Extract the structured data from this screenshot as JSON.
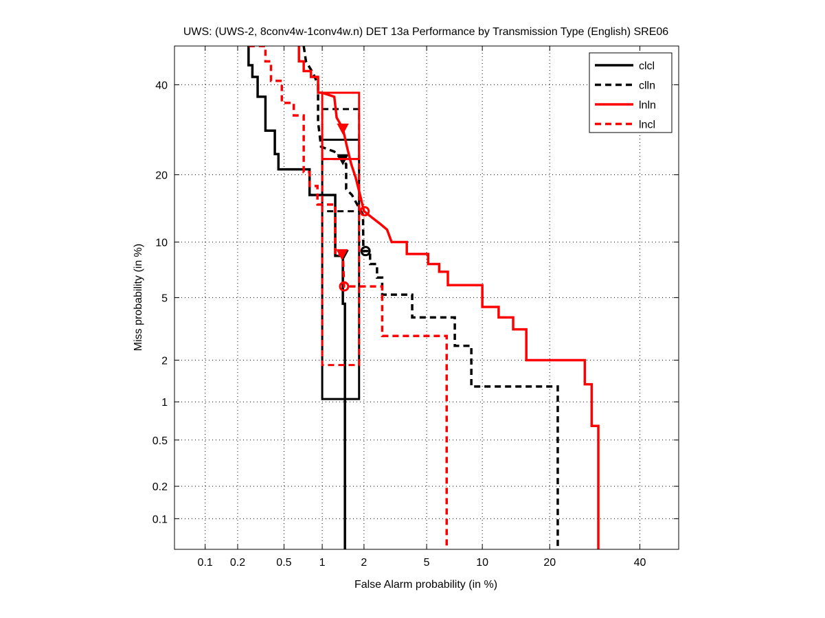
{
  "chart_data": {
    "type": "line",
    "title": "UWS: (UWS-2, 8conv4w-1conv4w.n) DET 13a Performance by Transmission Type (English) SRE06",
    "xlabel": "False Alarm probability (in %)",
    "ylabel": "Miss probability (in %)",
    "xscale": "normal-deviate",
    "yscale": "normal-deviate",
    "xlim": [
      0.05,
      50
    ],
    "ylim": [
      0.05,
      50
    ],
    "grid": true,
    "xticks": [
      0.1,
      0.2,
      0.5,
      1,
      2,
      5,
      10,
      20,
      40
    ],
    "xtick_labels": [
      "0.1",
      "0.2",
      "0.5",
      "1",
      "2",
      "5",
      "10",
      "20",
      "40"
    ],
    "yticks": [
      0.1,
      0.2,
      0.5,
      1,
      2,
      5,
      10,
      20,
      40
    ],
    "ytick_labels": [
      "0.1",
      "0.2",
      "0.5",
      "1",
      "2",
      "5",
      "10",
      "20",
      "40"
    ],
    "legend_position": "top-right",
    "series": [
      {
        "name": "clcl",
        "color": "#000000",
        "dashed": false,
        "points": [
          [
            0.25,
            50
          ],
          [
            0.25,
            45
          ],
          [
            0.27,
            45
          ],
          [
            0.27,
            42
          ],
          [
            0.3,
            42
          ],
          [
            0.3,
            37
          ],
          [
            0.35,
            37
          ],
          [
            0.35,
            29
          ],
          [
            0.42,
            29
          ],
          [
            0.42,
            24
          ],
          [
            0.45,
            24
          ],
          [
            0.45,
            21
          ],
          [
            0.8,
            21
          ],
          [
            0.8,
            16.5
          ],
          [
            1.25,
            16.5
          ],
          [
            1.25,
            8.5
          ],
          [
            1.42,
            8.5
          ],
          [
            1.42,
            4.6
          ],
          [
            1.47,
            4.6
          ],
          [
            1.47,
            0.05
          ]
        ],
        "box": {
          "fa": [
            1.0,
            1.85
          ],
          "miss": [
            1.05,
            27
          ]
        },
        "actual_marker": [
          1.42,
          8.6
        ],
        "min_dcf_marker": null
      },
      {
        "name": "clln",
        "color": "#000000",
        "dashed": true,
        "points": [
          [
            0.72,
            50
          ],
          [
            0.75,
            46
          ],
          [
            0.85,
            43
          ],
          [
            0.93,
            40
          ],
          [
            0.93,
            31
          ],
          [
            0.98,
            25.5
          ],
          [
            1.23,
            24.5
          ],
          [
            1.38,
            23
          ],
          [
            1.5,
            22
          ],
          [
            1.5,
            17.5
          ],
          [
            1.65,
            16.5
          ],
          [
            1.85,
            14.5
          ],
          [
            1.97,
            13.5
          ],
          [
            1.98,
            9
          ],
          [
            2.2,
            9
          ],
          [
            2.2,
            7.7
          ],
          [
            2.45,
            7.7
          ],
          [
            2.45,
            6.5
          ],
          [
            2.65,
            6.5
          ],
          [
            2.65,
            5.2
          ],
          [
            4.1,
            5.2
          ],
          [
            4.1,
            3.8
          ],
          [
            7.2,
            3.8
          ],
          [
            7.2,
            2.5
          ],
          [
            8.8,
            2.5
          ],
          [
            8.8,
            1.3
          ],
          [
            21.5,
            1.3
          ],
          [
            21.5,
            0.05
          ]
        ],
        "box": {
          "fa": [
            1.0,
            1.85
          ],
          "miss": [
            14,
            34
          ]
        },
        "actual_marker": [
          1.42,
          23
        ],
        "min_dcf_marker": [
          2.05,
          9
        ]
      },
      {
        "name": "lnln",
        "color": "#ff0000",
        "dashed": false,
        "points": [
          [
            0.66,
            50
          ],
          [
            0.66,
            46
          ],
          [
            0.72,
            46
          ],
          [
            0.72,
            43.5
          ],
          [
            0.82,
            43.5
          ],
          [
            0.82,
            42
          ],
          [
            0.93,
            42
          ],
          [
            0.93,
            38
          ],
          [
            1.0,
            38
          ],
          [
            1.23,
            37
          ],
          [
            1.28,
            32
          ],
          [
            1.42,
            29.5
          ],
          [
            1.52,
            25.5
          ],
          [
            1.63,
            22
          ],
          [
            1.75,
            19.5
          ],
          [
            1.88,
            16.5
          ],
          [
            2.0,
            14
          ],
          [
            2.3,
            13
          ],
          [
            2.55,
            12.3
          ],
          [
            2.85,
            11.5
          ],
          [
            3.05,
            10
          ],
          [
            3.8,
            10
          ],
          [
            3.8,
            8.7
          ],
          [
            5.1,
            8.7
          ],
          [
            5.1,
            7.7
          ],
          [
            5.9,
            7.7
          ],
          [
            5.9,
            7.0
          ],
          [
            6.6,
            7.0
          ],
          [
            6.6,
            5.9
          ],
          [
            10,
            5.9
          ],
          [
            10,
            4.4
          ],
          [
            12,
            4.4
          ],
          [
            12,
            3.8
          ],
          [
            14,
            3.8
          ],
          [
            14,
            3.2
          ],
          [
            16,
            3.2
          ],
          [
            16,
            2
          ],
          [
            27,
            2
          ],
          [
            27,
            1.35
          ],
          [
            28.5,
            1.35
          ],
          [
            28.5,
            0.65
          ],
          [
            30,
            0.65
          ],
          [
            30,
            0.05
          ]
        ],
        "box": {
          "fa": [
            1.0,
            1.85
          ],
          "miss": [
            23,
            38
          ]
        },
        "actual_marker": [
          1.42,
          29.5
        ],
        "min_dcf_marker": [
          2.02,
          14
        ]
      },
      {
        "name": "lncl",
        "color": "#ff0000",
        "dashed": true,
        "points": [
          [
            0.25,
            50
          ],
          [
            0.35,
            50
          ],
          [
            0.35,
            46
          ],
          [
            0.39,
            46
          ],
          [
            0.39,
            41
          ],
          [
            0.48,
            41
          ],
          [
            0.48,
            35.5
          ],
          [
            0.6,
            35.5
          ],
          [
            0.6,
            32.5
          ],
          [
            0.72,
            32.5
          ],
          [
            0.72,
            20.5
          ],
          [
            0.8,
            20.5
          ],
          [
            0.8,
            18
          ],
          [
            0.92,
            18
          ],
          [
            0.92,
            15
          ],
          [
            1.04,
            15
          ],
          [
            1.25,
            15
          ],
          [
            1.25,
            8.6
          ],
          [
            1.42,
            8.6
          ],
          [
            1.45,
            5.8
          ],
          [
            2.65,
            5.8
          ],
          [
            2.65,
            2.9
          ],
          [
            6.5,
            2.9
          ],
          [
            6.5,
            0.05
          ]
        ],
        "box": {
          "fa": [
            1.0,
            1.85
          ],
          "miss": [
            1.85,
            23
          ]
        },
        "actual_marker": [
          1.4,
          8.7
        ],
        "min_dcf_marker": [
          1.45,
          5.8
        ]
      }
    ]
  }
}
